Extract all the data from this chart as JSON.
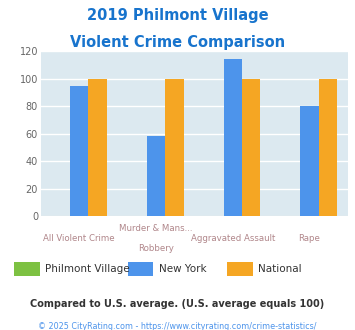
{
  "title_line1": "2019 Philmont Village",
  "title_line2": "Violent Crime Comparison",
  "title_color": "#1874cd",
  "cat_labels_row1": [
    "All Violent Crime",
    "Murder & Mans...",
    "Aggravated Assault",
    "Rape"
  ],
  "cat_labels_row2": [
    "",
    "Robbery",
    "",
    ""
  ],
  "philmont_village": [
    0,
    0,
    0,
    0
  ],
  "new_york": [
    95,
    58,
    114,
    80
  ],
  "national": [
    100,
    100,
    100,
    100
  ],
  "philmont_color": "#7dc142",
  "newyork_color": "#4d94eb",
  "national_color": "#f5a623",
  "ylim": [
    0,
    120
  ],
  "yticks": [
    0,
    20,
    40,
    60,
    80,
    100,
    120
  ],
  "bg_color": "#dce9f0",
  "outer_bg": "#ffffff",
  "xlabel_color_top": "#b0868a",
  "xlabel_color_bot": "#c8a882",
  "grid_color": "#ffffff",
  "footnote": "Compared to U.S. average. (U.S. average equals 100)",
  "copyright": "© 2025 CityRating.com - https://www.cityrating.com/crime-statistics/",
  "footnote_color": "#333333",
  "copyright_color": "#4d94eb",
  "legend_labels": [
    "Philmont Village",
    "New York",
    "National"
  ],
  "legend_label_color": "#333333"
}
